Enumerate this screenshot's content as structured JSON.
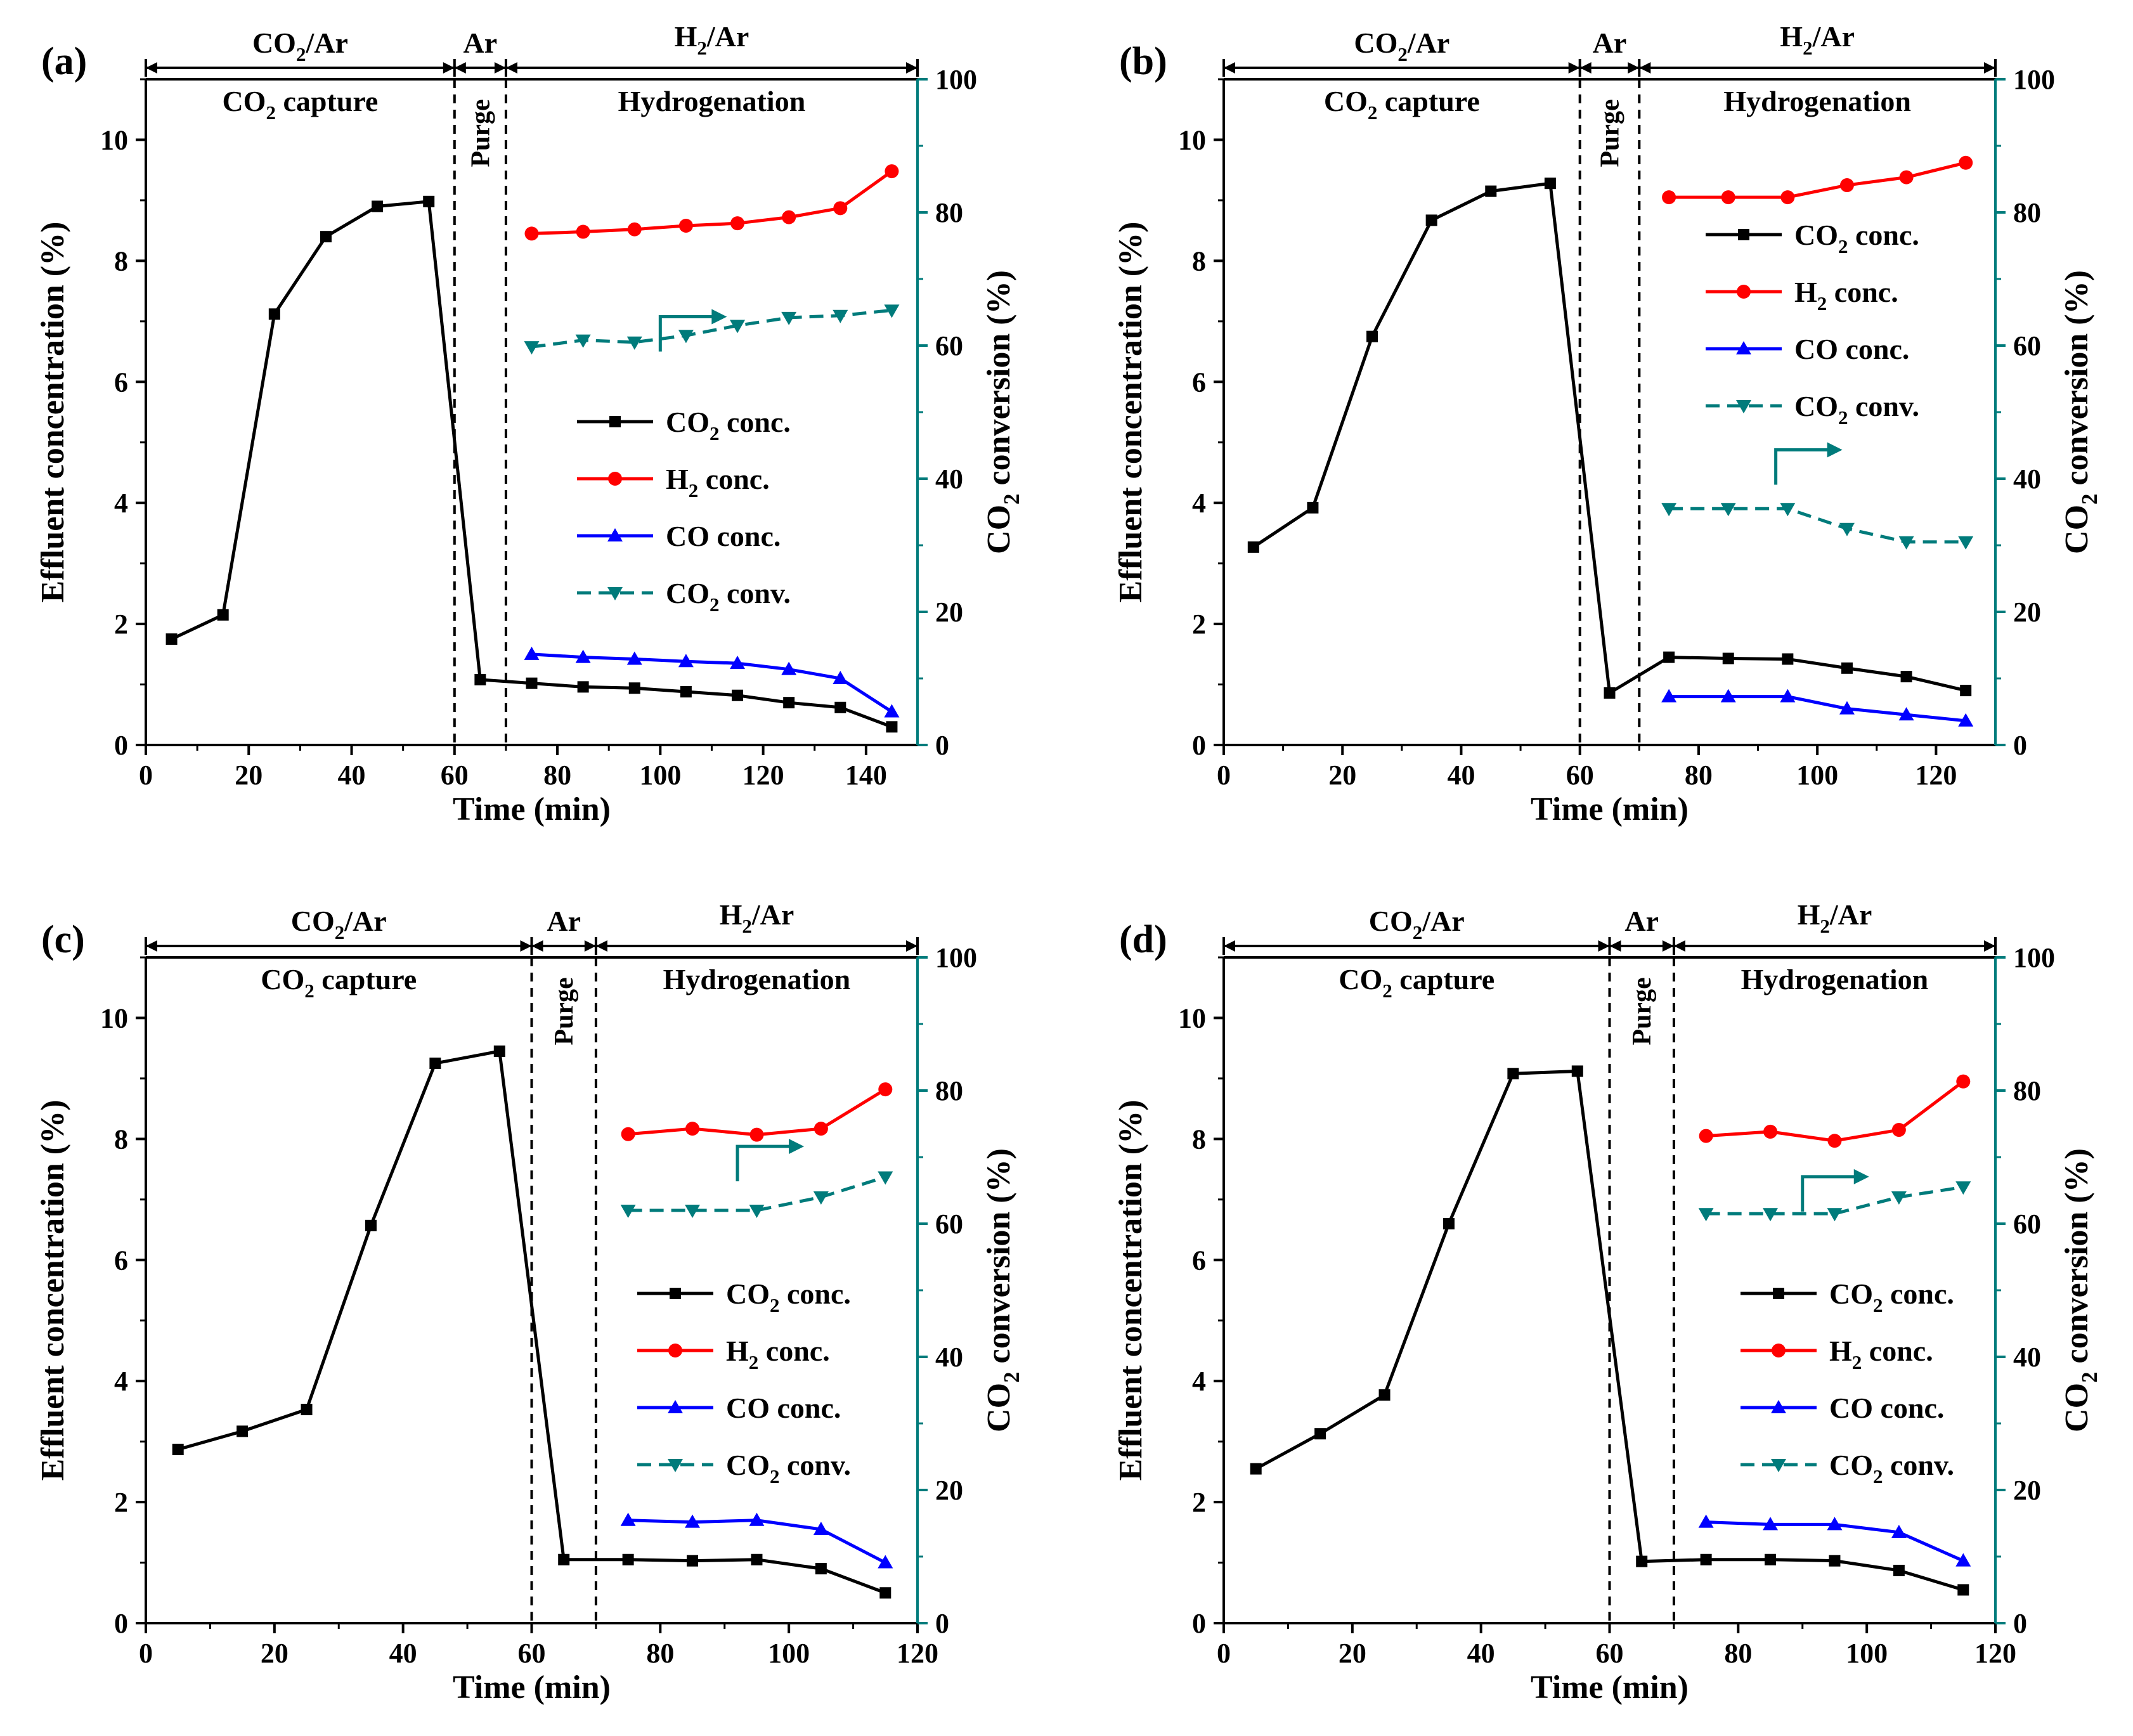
{
  "figure": {
    "colors": {
      "co2": "#000000",
      "h2": "#ff0000",
      "co": "#0000ff",
      "conv": "#007b7b",
      "right_axis": "#007b7b"
    },
    "annotations": {
      "gas1_main": "CO",
      "gas1_sub": "2",
      "gas1_tail": "/Ar",
      "gas2": "Ar",
      "gas3_main": "H",
      "gas3_sub": "2",
      "gas3_tail": "/Ar",
      "phase1_main": "CO",
      "phase1_sub": "2",
      "phase1_tail": " capture",
      "phase2": "Purge",
      "phase3": "Hydrogenation"
    },
    "axis_text": {
      "xlabel": "Time (min)",
      "ylabel": "Effluent concentration (%)",
      "y2label_main": "CO",
      "y2label_sub": "2",
      "y2label_tail": " conversion (%)"
    },
    "legend": [
      {
        "key": "co2",
        "main": "CO",
        "sub": "2",
        "tail": " conc."
      },
      {
        "key": "h2",
        "main": "H",
        "sub": "2",
        "tail": " conc."
      },
      {
        "key": "co",
        "main": "CO",
        "sub": "",
        "tail": " conc."
      },
      {
        "key": "conv",
        "main": "CO",
        "sub": "2",
        "tail": " conv."
      }
    ]
  },
  "chart_data": [
    {
      "type": "line",
      "panel_label": "(a)",
      "xlim": [
        0,
        150
      ],
      "xticks": [
        0,
        20,
        40,
        60,
        80,
        100,
        120,
        140
      ],
      "ylim": [
        0,
        11
      ],
      "yticks": [
        0,
        2,
        4,
        6,
        8,
        10
      ],
      "y2lim": [
        0,
        100
      ],
      "y2ticks": [
        0,
        20,
        40,
        60,
        80,
        100
      ],
      "phase_bounds": [
        60,
        70
      ],
      "legend_position": "center-right",
      "series": {
        "co2": {
          "x": [
            5,
            15,
            25,
            35,
            45,
            55,
            65,
            75,
            85,
            95,
            105,
            115,
            125,
            135,
            145
          ],
          "y": [
            1.75,
            2.15,
            7.12,
            8.4,
            8.9,
            8.98,
            1.08,
            1.02,
            0.96,
            0.94,
            0.88,
            0.82,
            0.7,
            0.62,
            0.3
          ]
        },
        "h2": {
          "x": [
            75,
            85,
            95,
            105,
            115,
            125,
            135,
            145
          ],
          "y": [
            8.45,
            8.48,
            8.52,
            8.58,
            8.62,
            8.72,
            8.87,
            9.48
          ]
        },
        "co": {
          "x": [
            75,
            85,
            95,
            105,
            115,
            125,
            135,
            145
          ],
          "y": [
            1.5,
            1.45,
            1.42,
            1.38,
            1.35,
            1.25,
            1.1,
            0.55
          ]
        },
        "conv": {
          "x": [
            75,
            85,
            95,
            105,
            115,
            125,
            135,
            145
          ],
          "y": [
            59.8,
            60.8,
            60.5,
            61.5,
            63,
            64.2,
            64.5,
            65.3
          ]
        }
      },
      "arrow": {
        "x": 100,
        "y": 6.5
      }
    },
    {
      "type": "line",
      "panel_label": "(b)",
      "xlim": [
        0,
        130
      ],
      "xticks": [
        0,
        20,
        40,
        60,
        80,
        100,
        120
      ],
      "ylim": [
        0,
        11
      ],
      "yticks": [
        0,
        2,
        4,
        6,
        8,
        10
      ],
      "y2lim": [
        0,
        100
      ],
      "y2ticks": [
        0,
        20,
        40,
        60,
        80,
        100
      ],
      "phase_bounds": [
        60,
        70
      ],
      "legend_position": "top-right",
      "series": {
        "co2": {
          "x": [
            5,
            15,
            25,
            35,
            45,
            55,
            65,
            75,
            85,
            95,
            105,
            115,
            125
          ],
          "y": [
            3.27,
            3.92,
            6.75,
            8.67,
            9.15,
            9.28,
            0.86,
            1.45,
            1.43,
            1.42,
            1.27,
            1.13,
            0.9
          ]
        },
        "h2": {
          "x": [
            75,
            85,
            95,
            105,
            115,
            125
          ],
          "y": [
            9.05,
            9.05,
            9.05,
            9.25,
            9.38,
            9.62
          ]
        },
        "co": {
          "x": [
            75,
            85,
            95,
            105,
            115,
            125
          ],
          "y": [
            0.8,
            0.8,
            0.8,
            0.6,
            0.5,
            0.4
          ]
        },
        "conv": {
          "x": [
            75,
            85,
            95,
            105,
            115,
            125
          ],
          "y": [
            35.5,
            35.5,
            35.5,
            32.5,
            30.5,
            30.5
          ]
        }
      },
      "arrow": {
        "x": 93,
        "y": 4.3
      }
    },
    {
      "type": "line",
      "panel_label": "(c)",
      "xlim": [
        0,
        120
      ],
      "xticks": [
        0,
        20,
        40,
        60,
        80,
        100,
        120
      ],
      "ylim": [
        0,
        11
      ],
      "yticks": [
        0,
        2,
        4,
        6,
        8,
        10
      ],
      "y2lim": [
        0,
        100
      ],
      "y2ticks": [
        0,
        20,
        40,
        60,
        80,
        100
      ],
      "phase_bounds": [
        60,
        70
      ],
      "legend_position": "center-right",
      "series": {
        "co2": {
          "x": [
            5,
            15,
            25,
            35,
            45,
            55,
            65,
            75,
            85,
            95,
            105,
            115
          ],
          "y": [
            2.87,
            3.17,
            3.53,
            6.57,
            9.25,
            9.45,
            1.05,
            1.05,
            1.03,
            1.05,
            0.9,
            0.5
          ]
        },
        "h2": {
          "x": [
            75,
            85,
            95,
            105,
            115
          ],
          "y": [
            8.08,
            8.17,
            8.07,
            8.17,
            8.82
          ]
        },
        "co": {
          "x": [
            75,
            85,
            95,
            105,
            115
          ],
          "y": [
            1.7,
            1.67,
            1.7,
            1.55,
            1.0
          ]
        },
        "conv": {
          "x": [
            75,
            85,
            95,
            105,
            115
          ],
          "y": [
            62,
            62,
            62,
            64,
            67
          ]
        }
      },
      "arrow": {
        "x": 92,
        "y": 7.3
      }
    },
    {
      "type": "line",
      "panel_label": "(d)",
      "xlim": [
        0,
        120
      ],
      "xticks": [
        0,
        20,
        40,
        60,
        80,
        100,
        120
      ],
      "ylim": [
        0,
        11
      ],
      "yticks": [
        0,
        2,
        4,
        6,
        8,
        10
      ],
      "y2lim": [
        0,
        100
      ],
      "y2ticks": [
        0,
        20,
        40,
        60,
        80,
        100
      ],
      "phase_bounds": [
        60,
        70
      ],
      "legend_position": "center-right",
      "series": {
        "co2": {
          "x": [
            5,
            15,
            25,
            35,
            45,
            55,
            65,
            75,
            85,
            95,
            105,
            115
          ],
          "y": [
            2.55,
            3.13,
            3.77,
            6.6,
            9.08,
            9.12,
            1.02,
            1.05,
            1.05,
            1.03,
            0.87,
            0.55
          ]
        },
        "h2": {
          "x": [
            75,
            85,
            95,
            105,
            115
          ],
          "y": [
            8.05,
            8.12,
            7.97,
            8.15,
            8.95
          ]
        },
        "co": {
          "x": [
            75,
            85,
            95,
            105,
            115
          ],
          "y": [
            1.67,
            1.63,
            1.63,
            1.5,
            1.03
          ]
        },
        "conv": {
          "x": [
            75,
            85,
            95,
            105,
            115
          ],
          "y": [
            61.5,
            61.5,
            61.5,
            64,
            65.5
          ]
        }
      },
      "arrow": {
        "x": 90,
        "y": 6.8
      }
    }
  ]
}
